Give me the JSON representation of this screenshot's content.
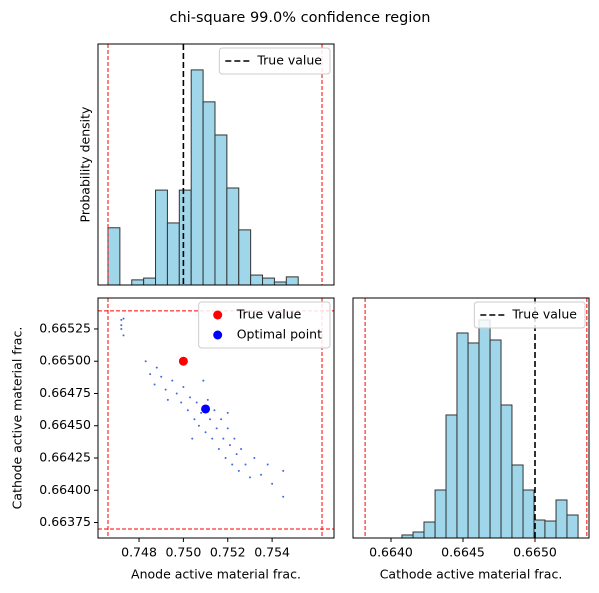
{
  "title": "chi-square 99.0% confidence region",
  "chart_data": [
    {
      "type": "histogram",
      "ylabel": "Probability density",
      "bins": [
        0.7466,
        0.747136,
        0.747672,
        0.748208,
        0.748744,
        0.74928,
        0.749816,
        0.750352,
        0.750888,
        0.751424,
        0.75196,
        0.752496,
        0.753032,
        0.753568,
        0.754104,
        0.75464,
        0.755176,
        0.755712,
        0.756248
      ],
      "values": [
        190,
        0,
        17,
        23,
        315,
        206,
        315,
        714,
        608,
        498,
        322,
        183,
        33,
        23,
        10,
        27,
        0,
        0
      ],
      "color": "#9fd6ea",
      "edgecolor": "#333333",
      "xlim": [
        0.74615,
        0.75679
      ],
      "ylim": [
        0,
        800
      ],
      "bounds": [
        0.7466,
        0.75625
      ],
      "bounds_color": "red",
      "reference": {
        "name": "True value",
        "value": 0.75,
        "color": "black"
      },
      "legend": "upper right"
    },
    {
      "type": "scatter",
      "xlabel": "Anode active material frac.",
      "ylabel": "Cathode active material frac.",
      "xlim": [
        0.74615,
        0.75679
      ],
      "ylim": [
        0.66363,
        0.66549
      ],
      "xticks": [
        0.748,
        {
          "value": 0.75,
          "label": "0.750"
        },
        0.752,
        0.754
      ],
      "yticks": [
        0.66375,
        {
          "value": 0.664,
          "label": "0.66400"
        },
        0.66425,
        {
          "value": 0.6645,
          "label": "0.66450"
        },
        0.66475,
        {
          "value": 0.665,
          "label": "0.66500"
        },
        0.66525
      ],
      "xbounds": [
        0.7466,
        0.75625
      ],
      "ybounds": [
        0.6637,
        0.66539
      ],
      "bounds_color": "red",
      "points": {
        "color": "#4169e1",
        "x": [
          0.7472,
          0.7472,
          0.7473,
          0.7472,
          0.7473,
          0.7485,
          0.7487,
          0.749,
          0.7492,
          0.7493,
          0.7495,
          0.7497,
          0.7499,
          0.75,
          0.7502,
          0.7503,
          0.7505,
          0.7506,
          0.7507,
          0.7508,
          0.751,
          0.7511,
          0.7512,
          0.7513,
          0.7514,
          0.7515,
          0.7516,
          0.7517,
          0.7518,
          0.7519,
          0.752,
          0.7521,
          0.7522,
          0.7523,
          0.7524,
          0.7525,
          0.7526,
          0.7528,
          0.753,
          0.7532,
          0.7535,
          0.7538,
          0.754,
          0.7545,
          0.7545,
          0.7483,
          0.7488,
          0.7509,
          0.7504,
          0.752
        ],
        "y": [
          0.66532,
          0.66525,
          0.6652,
          0.66528,
          0.66533,
          0.6649,
          0.66482,
          0.66488,
          0.66478,
          0.6647,
          0.66485,
          0.66475,
          0.66468,
          0.6648,
          0.66462,
          0.66472,
          0.66455,
          0.66468,
          0.6645,
          0.6646,
          0.66445,
          0.6647,
          0.66455,
          0.6644,
          0.66462,
          0.66448,
          0.66432,
          0.66455,
          0.6644,
          0.66425,
          0.66448,
          0.66435,
          0.6642,
          0.6644,
          0.66428,
          0.66415,
          0.66432,
          0.6642,
          0.6641,
          0.66425,
          0.66412,
          0.6642,
          0.66405,
          0.66415,
          0.66395,
          0.665,
          0.66495,
          0.66485,
          0.6644,
          0.6646
        ]
      },
      "series": [
        {
          "name": "True value",
          "color": "red",
          "x": [
            0.75
          ],
          "y": [
            0.665
          ]
        },
        {
          "name": "Optimal point",
          "color": "blue",
          "x": [
            0.751
          ],
          "y": [
            0.66463
          ]
        }
      ],
      "legend": "upper right"
    },
    {
      "type": "histogram",
      "xlabel": "Cathode active material frac.",
      "bins": [
        0.664076,
        0.664153,
        0.664229,
        0.664306,
        0.664382,
        0.664458,
        0.664535,
        0.664611,
        0.664688,
        0.664764,
        0.66484,
        0.664917,
        0.664993,
        0.665069,
        0.665146,
        0.665222,
        0.665299
      ],
      "values": [
        63,
        125,
        333,
        1000,
        2563,
        4271,
        4063,
        4542,
        4125,
        2771,
        1521,
        1000,
        375,
        354,
        792,
        479
      ],
      "color": "#9fd6ea",
      "edgecolor": "#333333",
      "xlim": [
        0.663736,
        0.665375
      ],
      "ylim": [
        0,
        5000
      ],
      "xticks": [
        {
          "value": 0.664,
          "label": "0.6640"
        },
        0.6645,
        {
          "value": 0.665,
          "label": "0.6650"
        }
      ],
      "bounds": [
        0.66382,
        0.66536
      ],
      "bounds_color": "red",
      "reference": {
        "name": "True value",
        "value": 0.665,
        "color": "black"
      },
      "legend": "upper right"
    }
  ]
}
